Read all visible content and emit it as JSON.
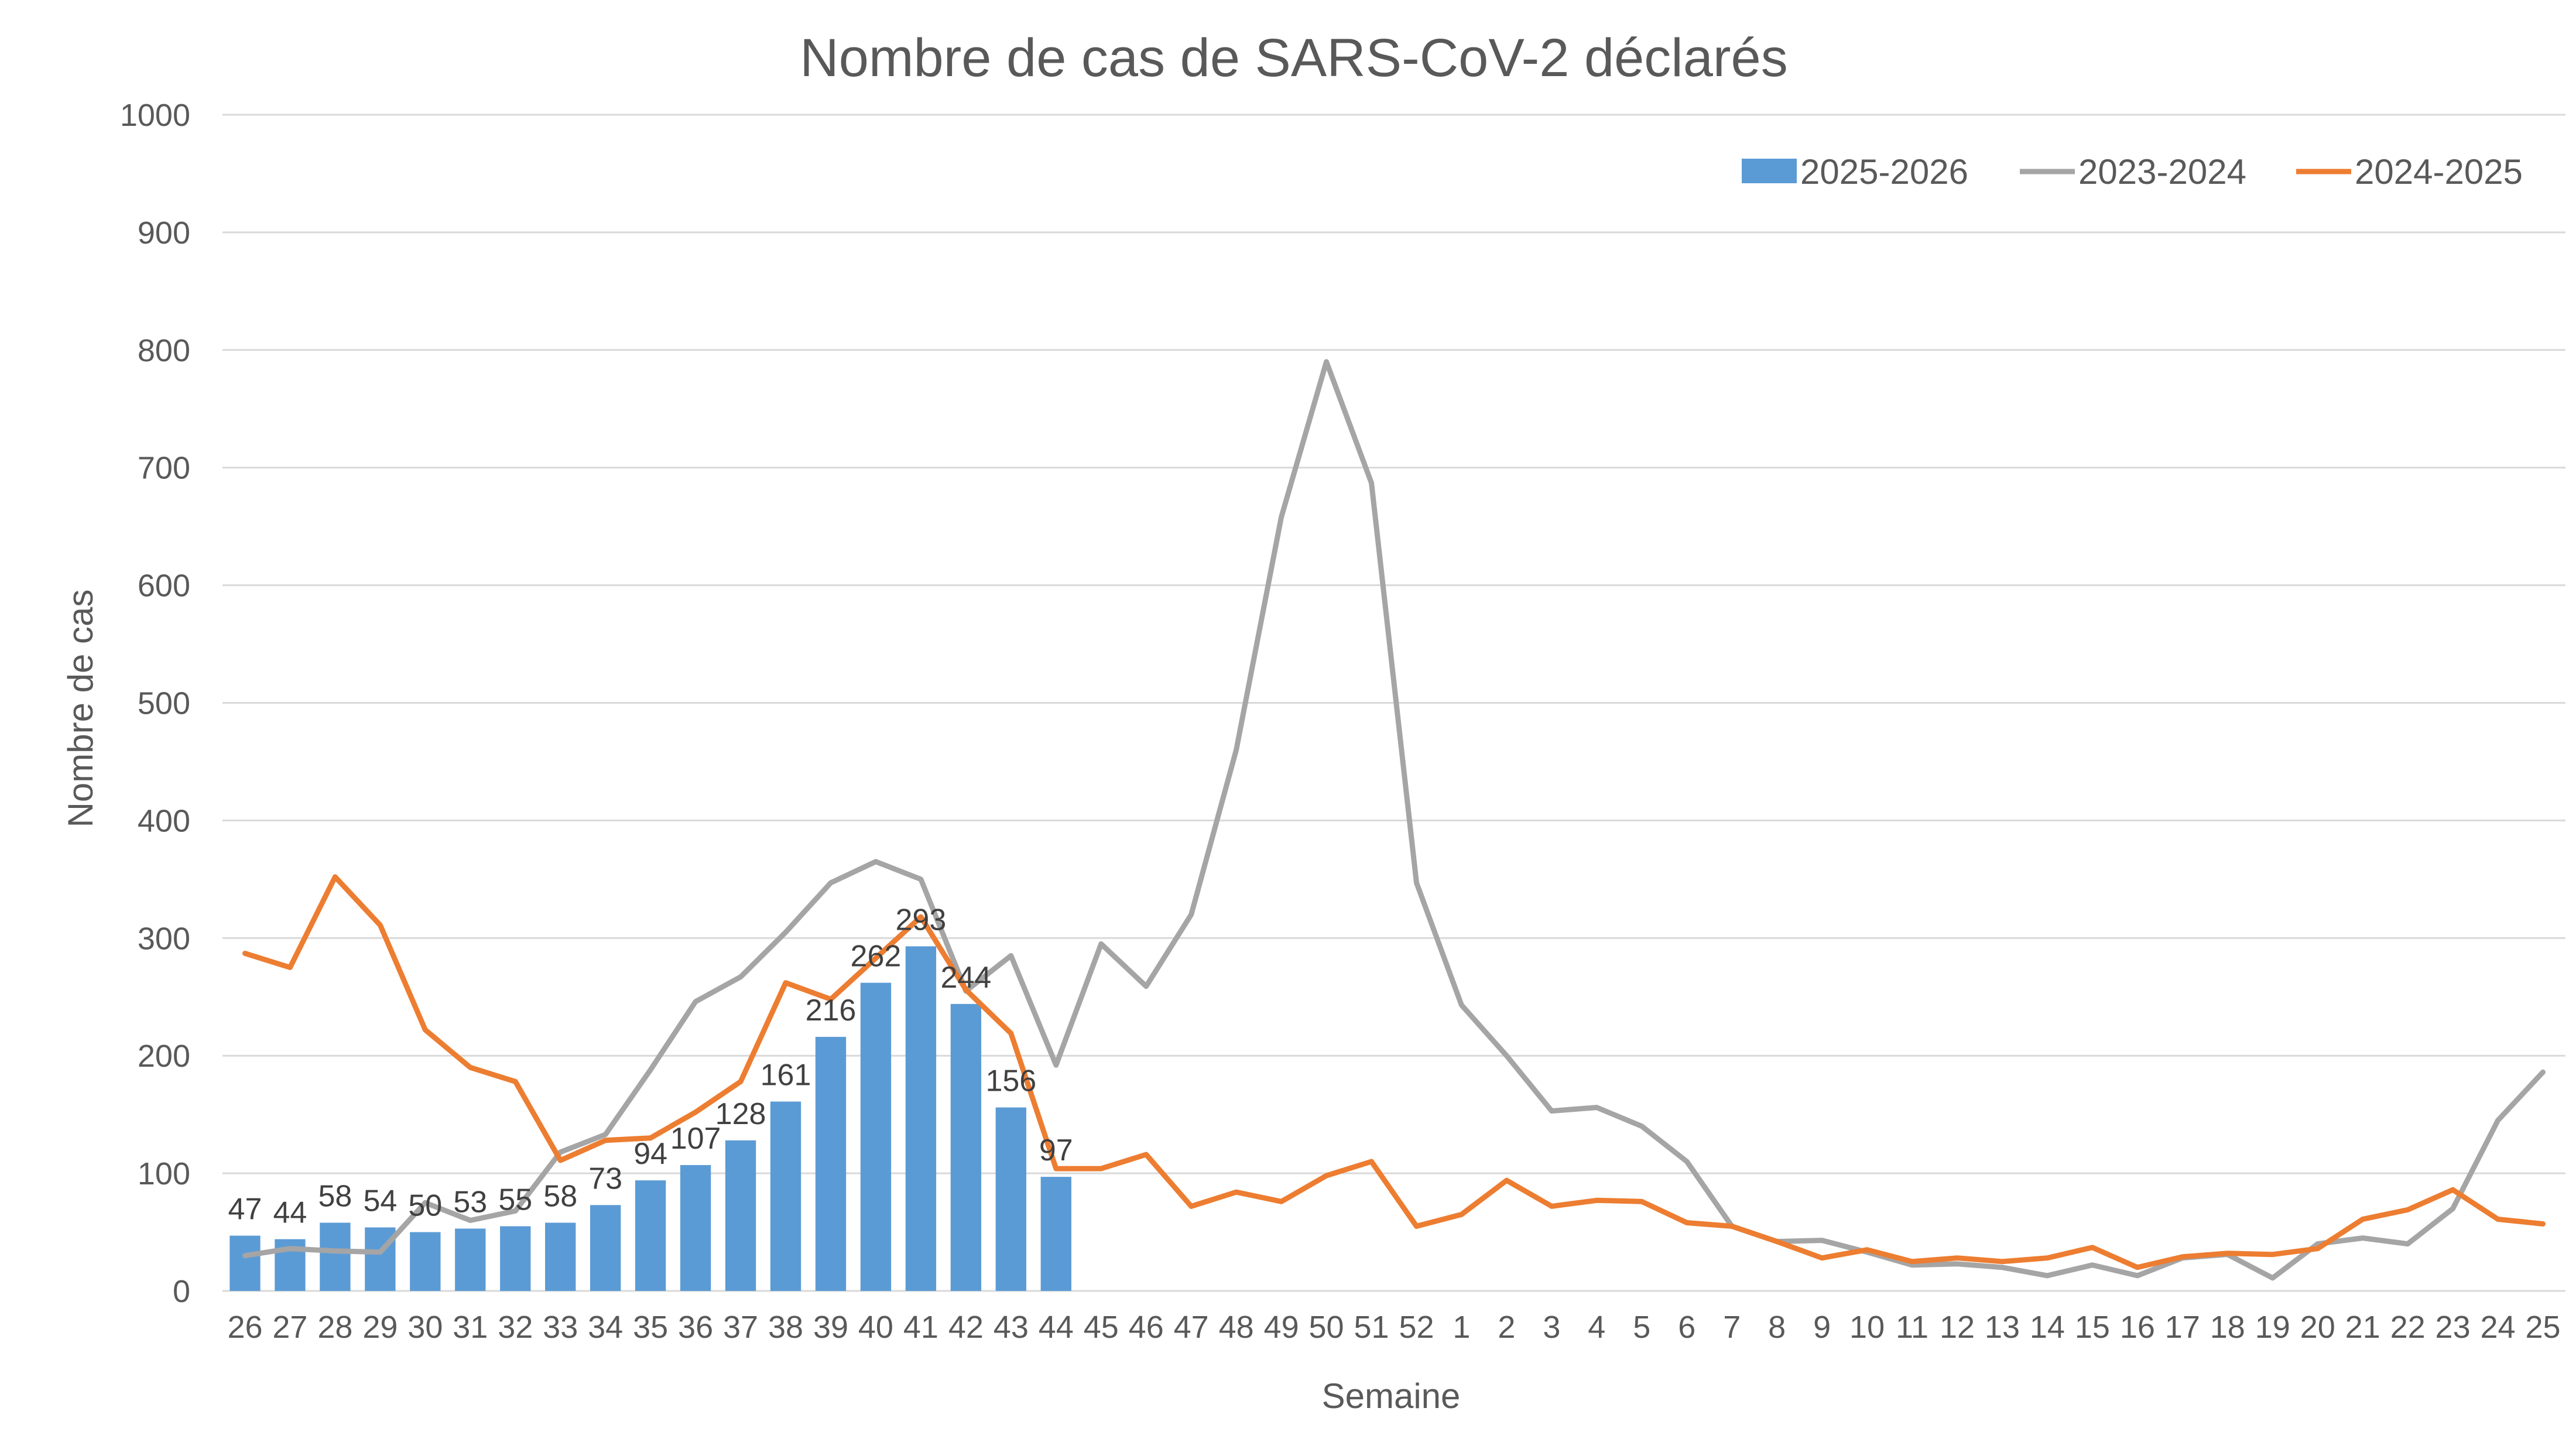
{
  "chart_data": {
    "type": "bar",
    "title": "Nombre de cas de SARS-CoV-2 déclarés",
    "xlabel": "Semaine",
    "ylabel": "Nombre de cas",
    "ylim": [
      0,
      1000
    ],
    "yticks": [
      0,
      100,
      200,
      300,
      400,
      500,
      600,
      700,
      800,
      900,
      1000
    ],
    "grid": true,
    "legend_position": "top-right",
    "categories": [
      "26",
      "27",
      "28",
      "29",
      "30",
      "31",
      "32",
      "33",
      "34",
      "35",
      "36",
      "37",
      "38",
      "39",
      "40",
      "41",
      "42",
      "43",
      "44",
      "45",
      "46",
      "47",
      "48",
      "49",
      "50",
      "51",
      "52",
      "1",
      "2",
      "3",
      "4",
      "5",
      "6",
      "7",
      "8",
      "9",
      "10",
      "11",
      "12",
      "13",
      "14",
      "15",
      "16",
      "17",
      "18",
      "19",
      "20",
      "21",
      "22",
      "23",
      "24",
      "25"
    ],
    "series": [
      {
        "name": "2025-2026",
        "kind": "bar",
        "color": "#5B9BD5",
        "values": [
          47,
          44,
          58,
          54,
          50,
          53,
          55,
          58,
          73,
          94,
          107,
          128,
          161,
          216,
          262,
          293,
          244,
          156,
          97,
          null,
          null,
          null,
          null,
          null,
          null,
          null,
          null,
          null,
          null,
          null,
          null,
          null,
          null,
          null,
          null,
          null,
          null,
          null,
          null,
          null,
          null,
          null,
          null,
          null,
          null,
          null,
          null,
          null,
          null,
          null,
          null,
          null
        ]
      },
      {
        "name": "2023-2024",
        "kind": "line",
        "color": "#A5A5A5",
        "values": [
          30,
          36,
          34,
          33,
          75,
          60,
          68,
          118,
          133,
          188,
          246,
          267,
          305,
          347,
          365,
          350,
          255,
          285,
          192,
          295,
          259,
          320,
          460,
          658,
          790,
          687,
          347,
          243,
          200,
          153,
          156,
          140,
          110,
          55,
          42,
          43,
          33,
          22,
          23,
          20,
          13,
          22,
          13,
          28,
          31,
          11,
          40,
          45,
          40,
          70,
          145,
          186
        ]
      },
      {
        "name": "2024-2025",
        "kind": "line",
        "color": "#ED7D31",
        "values": [
          287,
          275,
          352,
          311,
          222,
          190,
          178,
          111,
          128,
          130,
          152,
          178,
          262,
          248,
          283,
          318,
          256,
          219,
          104,
          104,
          116,
          72,
          84,
          76,
          98,
          110,
          55,
          65,
          94,
          72,
          77,
          76,
          58,
          55,
          42,
          28,
          35,
          25,
          28,
          25,
          28,
          37,
          20,
          29,
          32,
          31,
          36,
          61,
          69,
          86,
          61,
          57
        ]
      }
    ]
  }
}
